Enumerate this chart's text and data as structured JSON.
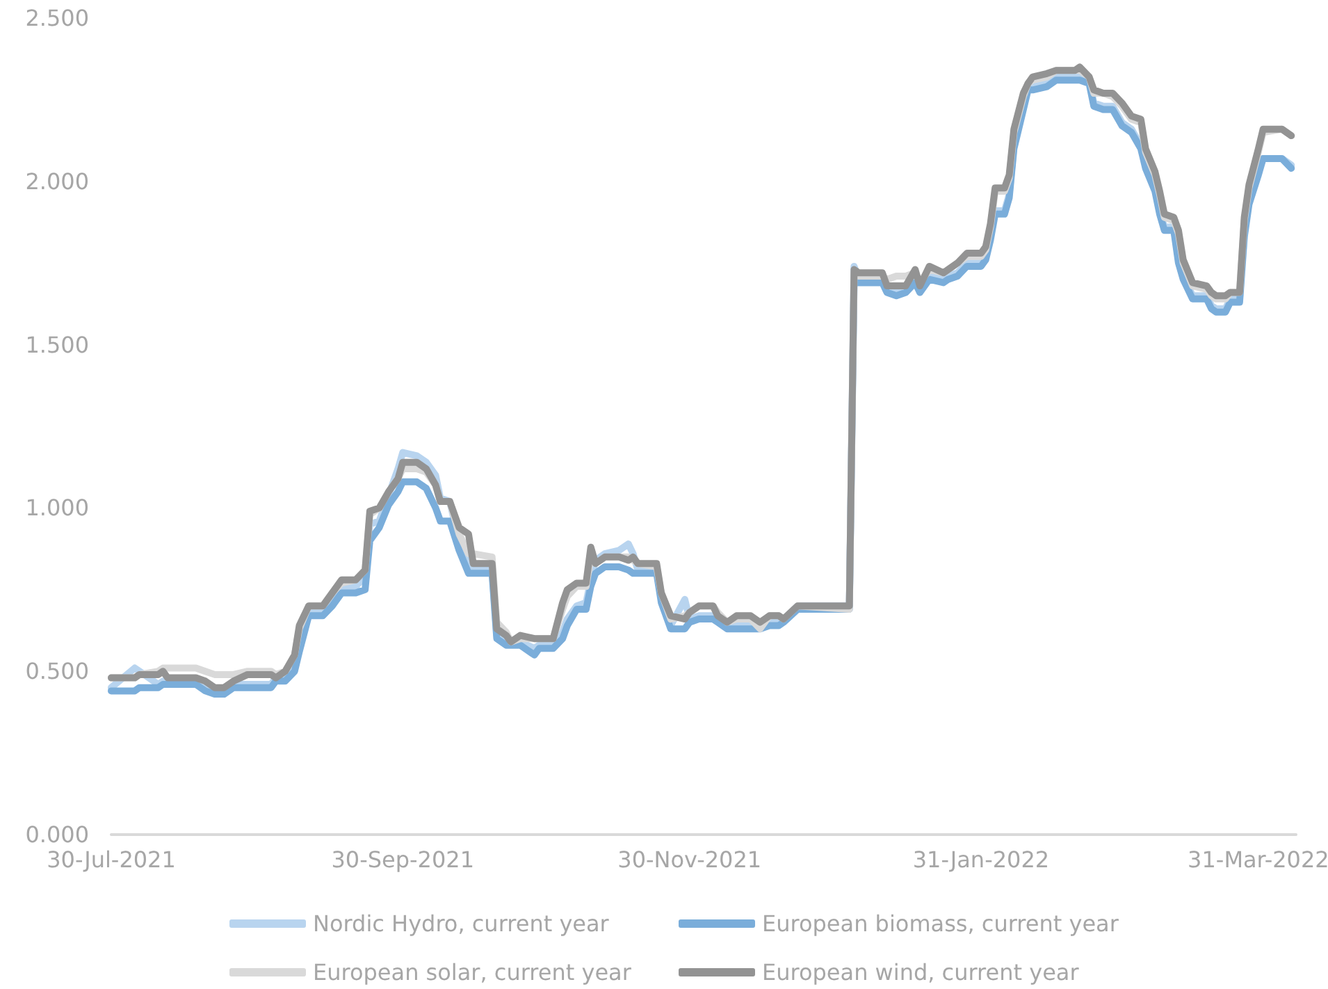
{
  "chart_data": {
    "type": "line",
    "x": [
      "2021-07-30",
      "2021-08-04",
      "2021-08-05",
      "2021-08-09",
      "2021-08-10",
      "2021-08-11",
      "2021-08-17",
      "2021-08-19",
      "2021-08-21",
      "2021-08-23",
      "2021-08-25",
      "2021-08-28",
      "2021-09-02",
      "2021-09-03",
      "2021-09-05",
      "2021-09-07",
      "2021-09-08",
      "2021-09-10",
      "2021-09-13",
      "2021-09-15",
      "2021-09-17",
      "2021-09-20",
      "2021-09-22",
      "2021-09-23",
      "2021-09-25",
      "2021-09-27",
      "2021-09-29",
      "2021-09-30",
      "2021-10-03",
      "2021-10-05",
      "2021-10-07",
      "2021-10-08",
      "2021-10-10",
      "2021-10-12",
      "2021-10-14",
      "2021-10-15",
      "2021-10-19",
      "2021-10-20",
      "2021-10-22",
      "2021-10-23",
      "2021-10-25",
      "2021-10-28",
      "2021-10-29",
      "2021-11-01",
      "2021-11-03",
      "2021-11-04",
      "2021-11-06",
      "2021-11-08",
      "2021-11-09",
      "2021-11-10",
      "2021-11-12",
      "2021-11-15",
      "2021-11-17",
      "2021-11-18",
      "2021-11-19",
      "2021-11-23",
      "2021-11-24",
      "2021-11-26",
      "2021-11-29",
      "2021-11-30",
      "2021-12-02",
      "2021-12-05",
      "2021-12-06",
      "2021-12-08",
      "2021-12-10",
      "2021-12-13",
      "2021-12-15",
      "2021-12-17",
      "2021-12-19",
      "2021-12-20",
      "2021-12-23",
      "2022-01-03",
      "2022-01-04",
      "2022-01-05",
      "2022-01-10",
      "2022-01-11",
      "2022-01-13",
      "2022-01-15",
      "2022-01-17",
      "2022-01-18",
      "2022-01-20",
      "2022-01-23",
      "2022-01-24",
      "2022-01-26",
      "2022-01-28",
      "2022-01-31",
      "2022-02-01",
      "2022-02-02",
      "2022-02-03",
      "2022-02-05",
      "2022-02-06",
      "2022-02-07",
      "2022-02-09",
      "2022-02-10",
      "2022-02-11",
      "2022-02-14",
      "2022-02-16",
      "2022-02-20",
      "2022-02-21",
      "2022-02-23",
      "2022-02-24",
      "2022-02-26",
      "2022-02-28",
      "2022-03-02",
      "2022-03-04",
      "2022-03-06",
      "2022-03-07",
      "2022-03-09",
      "2022-03-10",
      "2022-03-11",
      "2022-03-13",
      "2022-03-14",
      "2022-03-15",
      "2022-03-17",
      "2022-03-20",
      "2022-03-21",
      "2022-03-22",
      "2022-03-24",
      "2022-03-25",
      "2022-03-27",
      "2022-03-28",
      "2022-03-29",
      "2022-03-31",
      "2022-04-01",
      "2022-04-05",
      "2022-04-07"
    ],
    "series": [
      {
        "name": "Nordic Hydro, current year",
        "color": "#b8d4ef",
        "values": [
          0.45,
          0.51,
          0.5,
          0.46,
          0.47,
          0.47,
          0.47,
          0.45,
          0.44,
          0.44,
          0.46,
          0.46,
          0.46,
          0.48,
          0.48,
          0.52,
          0.6,
          0.68,
          0.68,
          0.72,
          0.75,
          0.76,
          0.79,
          0.95,
          0.96,
          1.04,
          1.12,
          1.17,
          1.16,
          1.14,
          1.1,
          1.03,
          1.02,
          0.9,
          0.84,
          0.81,
          0.81,
          0.61,
          0.59,
          0.59,
          0.59,
          0.57,
          0.58,
          0.58,
          0.62,
          0.66,
          0.7,
          0.71,
          0.78,
          0.84,
          0.86,
          0.87,
          0.89,
          0.86,
          0.81,
          0.81,
          0.72,
          0.64,
          0.72,
          0.66,
          0.67,
          0.67,
          0.66,
          0.64,
          0.64,
          0.64,
          0.64,
          0.65,
          0.65,
          0.66,
          0.7,
          0.7,
          1.74,
          1.7,
          1.7,
          1.67,
          1.66,
          1.67,
          1.7,
          1.67,
          1.71,
          1.7,
          1.71,
          1.72,
          1.75,
          1.75,
          1.77,
          1.83,
          1.91,
          1.91,
          1.96,
          2.11,
          2.23,
          2.29,
          2.29,
          2.3,
          2.32,
          2.32,
          2.32,
          2.31,
          2.24,
          2.23,
          2.23,
          2.18,
          2.16,
          2.11,
          2.05,
          1.98,
          1.91,
          1.86,
          1.86,
          1.76,
          1.71,
          1.65,
          1.65,
          1.62,
          1.61,
          1.61,
          1.64,
          1.64,
          1.84,
          1.94,
          2.03,
          2.07,
          2.07,
          2.05
        ]
      },
      {
        "name": "European biomass, current year",
        "color": "#7aadda",
        "values": [
          0.44,
          0.44,
          0.45,
          0.45,
          0.46,
          0.46,
          0.46,
          0.44,
          0.43,
          0.43,
          0.45,
          0.45,
          0.45,
          0.47,
          0.47,
          0.5,
          0.56,
          0.67,
          0.67,
          0.7,
          0.74,
          0.74,
          0.75,
          0.9,
          0.94,
          1.01,
          1.05,
          1.08,
          1.08,
          1.06,
          1.0,
          0.96,
          0.96,
          0.87,
          0.8,
          0.8,
          0.8,
          0.6,
          0.58,
          0.58,
          0.58,
          0.55,
          0.57,
          0.57,
          0.6,
          0.64,
          0.69,
          0.69,
          0.76,
          0.8,
          0.82,
          0.82,
          0.81,
          0.8,
          0.8,
          0.8,
          0.71,
          0.63,
          0.63,
          0.65,
          0.66,
          0.66,
          0.65,
          0.63,
          0.63,
          0.63,
          0.63,
          0.64,
          0.64,
          0.65,
          0.69,
          0.69,
          1.69,
          1.69,
          1.69,
          1.66,
          1.65,
          1.66,
          1.69,
          1.66,
          1.7,
          1.69,
          1.7,
          1.71,
          1.74,
          1.74,
          1.76,
          1.82,
          1.9,
          1.9,
          1.95,
          2.1,
          2.22,
          2.28,
          2.28,
          2.29,
          2.31,
          2.31,
          2.31,
          2.3,
          2.23,
          2.22,
          2.22,
          2.17,
          2.15,
          2.1,
          2.04,
          1.97,
          1.9,
          1.85,
          1.85,
          1.75,
          1.7,
          1.64,
          1.64,
          1.61,
          1.6,
          1.6,
          1.63,
          1.63,
          1.83,
          1.93,
          2.02,
          2.07,
          2.07,
          2.04
        ]
      },
      {
        "name": "European solar, current year",
        "color": "#d9d9d9",
        "values": [
          0.48,
          0.48,
          0.49,
          0.5,
          0.51,
          0.51,
          0.51,
          0.5,
          0.49,
          0.49,
          0.49,
          0.5,
          0.5,
          0.49,
          0.5,
          0.55,
          0.63,
          0.7,
          0.7,
          0.74,
          0.77,
          0.78,
          0.81,
          0.98,
          1.0,
          1.05,
          1.09,
          1.12,
          1.12,
          1.11,
          1.07,
          1.02,
          1.02,
          0.92,
          0.86,
          0.86,
          0.85,
          0.65,
          0.62,
          0.59,
          0.6,
          0.6,
          0.6,
          0.6,
          0.69,
          0.73,
          0.76,
          0.76,
          0.85,
          0.83,
          0.85,
          0.85,
          0.85,
          0.84,
          0.83,
          0.82,
          0.74,
          0.66,
          0.67,
          0.68,
          0.7,
          0.7,
          0.68,
          0.65,
          0.66,
          0.66,
          0.63,
          0.67,
          0.67,
          0.66,
          0.7,
          0.69,
          1.72,
          1.71,
          1.71,
          1.7,
          1.71,
          1.71,
          1.72,
          1.69,
          1.73,
          1.72,
          1.73,
          1.75,
          1.77,
          1.77,
          1.79,
          1.86,
          1.97,
          1.97,
          2.01,
          2.15,
          2.26,
          2.3,
          2.31,
          2.32,
          2.34,
          2.34,
          2.34,
          2.32,
          2.27,
          2.27,
          2.26,
          2.23,
          2.19,
          2.18,
          2.09,
          2.02,
          1.96,
          1.89,
          1.88,
          1.84,
          1.75,
          1.68,
          1.67,
          1.65,
          1.64,
          1.64,
          1.66,
          1.66,
          1.88,
          1.98,
          2.09,
          2.15,
          2.16,
          2.14
        ]
      },
      {
        "name": "European wind, current year",
        "color": "#939393",
        "values": [
          0.48,
          0.48,
          0.49,
          0.49,
          0.5,
          0.48,
          0.48,
          0.47,
          0.45,
          0.45,
          0.47,
          0.49,
          0.49,
          0.48,
          0.5,
          0.55,
          0.64,
          0.7,
          0.7,
          0.74,
          0.78,
          0.78,
          0.81,
          0.99,
          1.0,
          1.05,
          1.09,
          1.14,
          1.14,
          1.12,
          1.07,
          1.02,
          1.02,
          0.94,
          0.92,
          0.83,
          0.83,
          0.63,
          0.61,
          0.59,
          0.61,
          0.6,
          0.6,
          0.6,
          0.71,
          0.75,
          0.77,
          0.77,
          0.88,
          0.83,
          0.85,
          0.85,
          0.84,
          0.85,
          0.83,
          0.83,
          0.74,
          0.67,
          0.66,
          0.68,
          0.7,
          0.7,
          0.67,
          0.65,
          0.67,
          0.67,
          0.65,
          0.67,
          0.67,
          0.66,
          0.7,
          0.7,
          1.73,
          1.72,
          1.72,
          1.68,
          1.68,
          1.68,
          1.73,
          1.68,
          1.74,
          1.72,
          1.73,
          1.75,
          1.78,
          1.78,
          1.8,
          1.87,
          1.98,
          1.98,
          2.02,
          2.16,
          2.27,
          2.3,
          2.32,
          2.33,
          2.34,
          2.34,
          2.35,
          2.32,
          2.28,
          2.27,
          2.27,
          2.24,
          2.2,
          2.19,
          2.1,
          2.03,
          1.97,
          1.9,
          1.89,
          1.85,
          1.76,
          1.69,
          1.68,
          1.66,
          1.65,
          1.65,
          1.66,
          1.66,
          1.89,
          1.99,
          2.1,
          2.16,
          2.16,
          2.14
        ]
      }
    ],
    "xlim": [
      "2021-07-30",
      "2022-04-08"
    ],
    "xticks": [
      {
        "value": "2021-07-30",
        "label": "30-Jul-2021"
      },
      {
        "value": "2021-09-30",
        "label": "30-Sep-2021"
      },
      {
        "value": "2021-11-30",
        "label": "30-Nov-2021"
      },
      {
        "value": "2022-01-31",
        "label": "31-Jan-2022"
      },
      {
        "value": "2022-03-31",
        "label": "31-Mar-2022"
      }
    ],
    "ylim": [
      0,
      2.5
    ],
    "yticks": [
      {
        "value": 0,
        "label": "0.000"
      },
      {
        "value": 0.5,
        "label": "0.500"
      },
      {
        "value": 1,
        "label": "1.000"
      },
      {
        "value": 1.5,
        "label": "1.500"
      },
      {
        "value": 2,
        "label": "2.000"
      },
      {
        "value": 2.5,
        "label": "2.500"
      }
    ],
    "legend": "bottom"
  }
}
